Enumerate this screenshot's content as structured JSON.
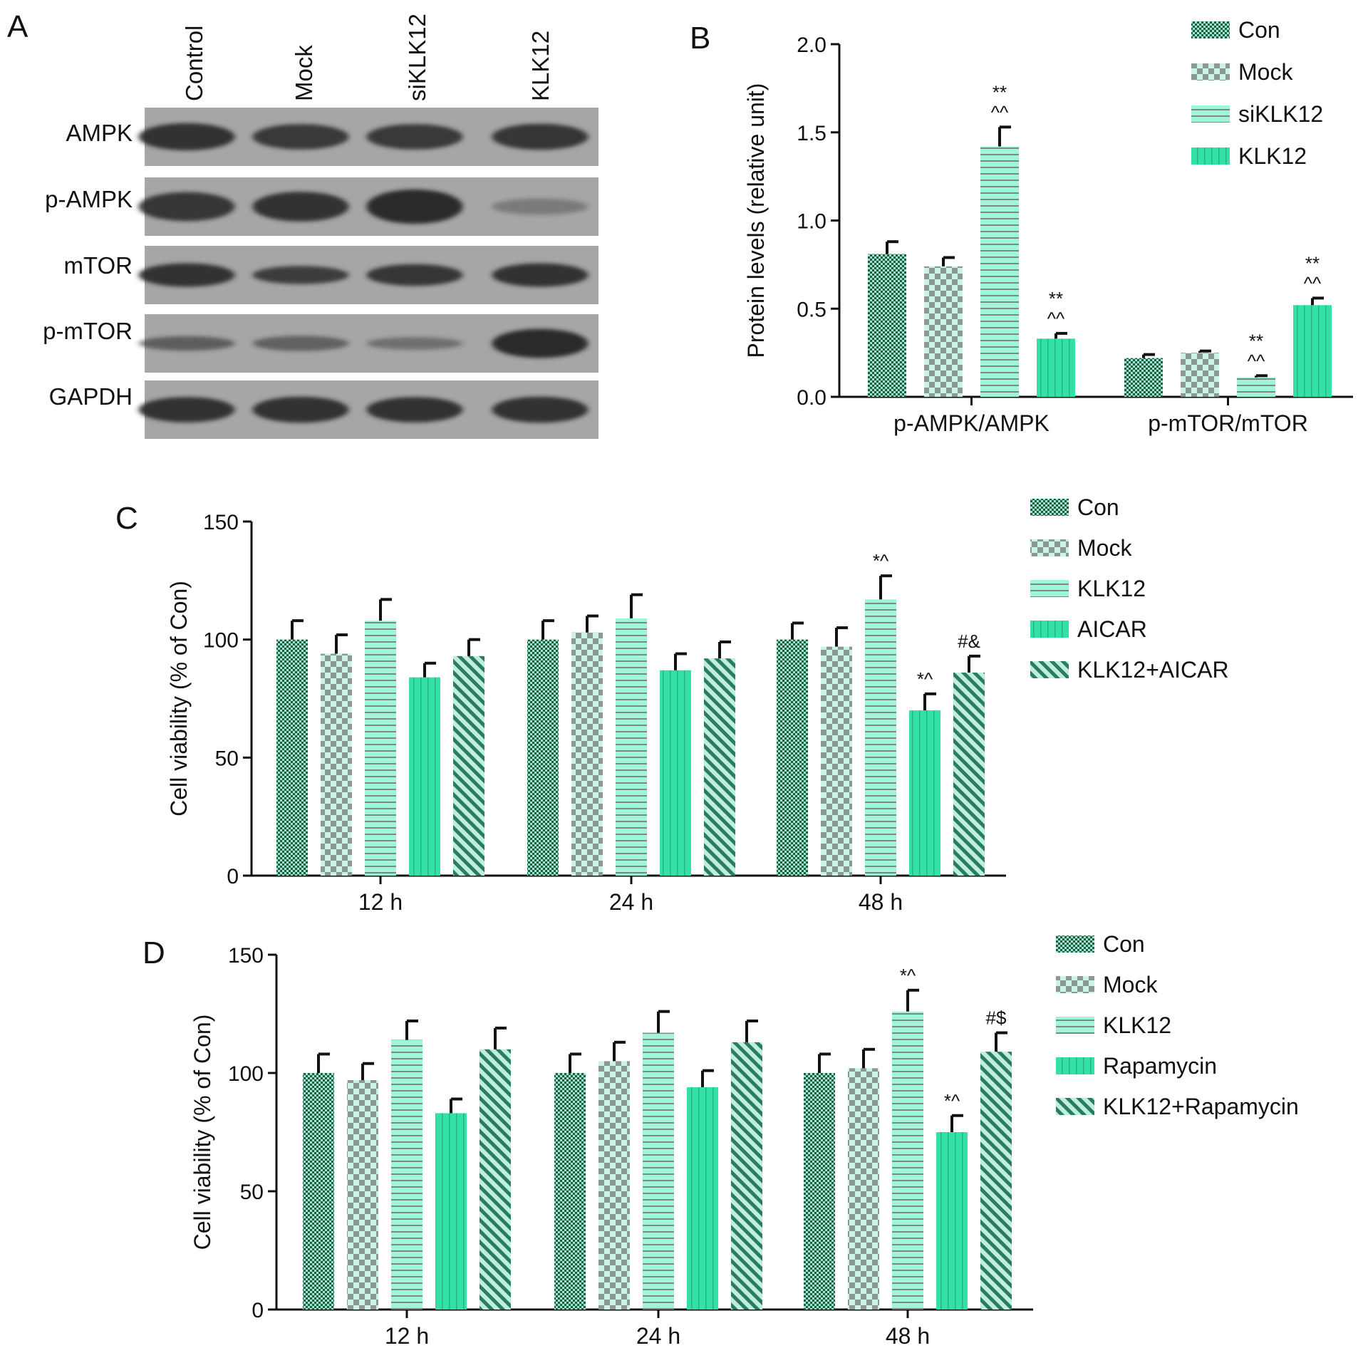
{
  "colors": {
    "con_dark": "#1d5c45",
    "con_light": "#9fe6c9",
    "mock_dark": "#8a9a92",
    "mock_light": "#c9f4e3",
    "klk_stripe": "#7a8a82",
    "klk_fill": "#9ef5d8",
    "solid_fill": "#33e0a8",
    "solid_line": "#21b784",
    "hatch_line": "#2a7c60",
    "hatch_bg": "#bfefdc",
    "blot_bg": "#a6a6a6",
    "band": "#2b2b2b",
    "axis": "#111111"
  },
  "panels": {
    "a": {
      "letter": "A"
    },
    "b": {
      "letter": "B"
    },
    "c": {
      "letter": "C"
    },
    "d": {
      "letter": "D"
    }
  },
  "blot": {
    "lanes": [
      "Control",
      "Mock",
      "siKLK12",
      "KLK12"
    ],
    "rows": [
      {
        "label": "AMPK",
        "intensity": [
          0.95,
          0.9,
          0.9,
          0.92
        ],
        "thickness": [
          0.75,
          0.7,
          0.7,
          0.72
        ]
      },
      {
        "label": "p-AMPK",
        "intensity": [
          0.92,
          0.95,
          1.0,
          0.35
        ],
        "thickness": [
          0.8,
          0.82,
          0.95,
          0.45
        ]
      },
      {
        "label": "mTOR",
        "intensity": [
          0.95,
          0.85,
          0.92,
          0.95
        ],
        "thickness": [
          0.65,
          0.5,
          0.6,
          0.65
        ]
      },
      {
        "label": "p-mTOR",
        "intensity": [
          0.6,
          0.55,
          0.45,
          1.0
        ],
        "thickness": [
          0.4,
          0.42,
          0.35,
          0.8
        ]
      },
      {
        "label": "GAPDH",
        "intensity": [
          0.95,
          0.95,
          0.95,
          0.95
        ],
        "thickness": [
          0.7,
          0.72,
          0.7,
          0.72
        ]
      }
    ]
  },
  "chart_data": [
    {
      "panel": "B",
      "type": "bar",
      "ylabel": "Protein levels (relative unit)",
      "xlabel": "",
      "ylim": [
        0,
        2.0
      ],
      "yticks": [
        "0.0",
        "0.5",
        "1.0",
        "1.5",
        "2.0"
      ],
      "categories": [
        "p-AMPK/AMPK",
        "p-mTOR/mTOR"
      ],
      "series": [
        {
          "name": "Con",
          "pattern": "con",
          "values": [
            0.81,
            0.22
          ],
          "errors": [
            0.07,
            0.02
          ],
          "annotations": [
            "",
            ""
          ]
        },
        {
          "name": "Mock",
          "pattern": "mock",
          "values": [
            0.74,
            0.25
          ],
          "errors": [
            0.05,
            0.01
          ],
          "annotations": [
            "",
            ""
          ]
        },
        {
          "name": "siKLK12",
          "pattern": "klk",
          "values": [
            1.42,
            0.11
          ],
          "errors": [
            0.11,
            0.01
          ],
          "annotations": [
            "**\n^^",
            "**\n^^"
          ]
        },
        {
          "name": "KLK12",
          "pattern": "solid",
          "values": [
            0.33,
            0.52
          ],
          "errors": [
            0.03,
            0.04
          ],
          "annotations": [
            "**\n^^",
            "**\n^^"
          ]
        }
      ],
      "legend": "top-right",
      "grid": false
    },
    {
      "panel": "C",
      "type": "bar",
      "ylabel": "Cell viability (% of Con)",
      "xlabel": "",
      "ylim": [
        0,
        150
      ],
      "yticks": [
        "0",
        "50",
        "100",
        "150"
      ],
      "categories": [
        "12 h",
        "24 h",
        "48 h"
      ],
      "series": [
        {
          "name": "Con",
          "pattern": "con",
          "values": [
            100,
            100,
            100
          ],
          "errors": [
            8,
            8,
            7
          ],
          "annotations": [
            "",
            "",
            ""
          ]
        },
        {
          "name": "Mock",
          "pattern": "mock",
          "values": [
            94,
            103,
            97
          ],
          "errors": [
            8,
            7,
            8
          ],
          "annotations": [
            "",
            "",
            ""
          ]
        },
        {
          "name": "KLK12",
          "pattern": "klk",
          "values": [
            108,
            109,
            117
          ],
          "errors": [
            9,
            10,
            10
          ],
          "annotations": [
            "",
            "",
            "*^"
          ]
        },
        {
          "name": "AICAR",
          "pattern": "solid",
          "values": [
            84,
            87,
            70
          ],
          "errors": [
            6,
            7,
            7
          ],
          "annotations": [
            "",
            "",
            "*^"
          ]
        },
        {
          "name": "KLK12+AICAR",
          "pattern": "hatch",
          "values": [
            93,
            92,
            86
          ],
          "errors": [
            7,
            7,
            7
          ],
          "annotations": [
            "",
            "",
            "#&"
          ]
        }
      ],
      "legend": "top-right",
      "grid": false
    },
    {
      "panel": "D",
      "type": "bar",
      "ylabel": "Cell viability (% of Con)",
      "xlabel": "",
      "ylim": [
        0,
        150
      ],
      "yticks": [
        "0",
        "50",
        "100",
        "150"
      ],
      "categories": [
        "12 h",
        "24 h",
        "48 h"
      ],
      "series": [
        {
          "name": "Con",
          "pattern": "con",
          "values": [
            100,
            100,
            100
          ],
          "errors": [
            8,
            8,
            8
          ],
          "annotations": [
            "",
            "",
            ""
          ]
        },
        {
          "name": "Mock",
          "pattern": "mock",
          "values": [
            97,
            105,
            102
          ],
          "errors": [
            7,
            8,
            8
          ],
          "annotations": [
            "",
            "",
            ""
          ]
        },
        {
          "name": "KLK12",
          "pattern": "klk",
          "values": [
            114,
            117,
            126
          ],
          "errors": [
            8,
            9,
            9
          ],
          "annotations": [
            "",
            "",
            "*^"
          ]
        },
        {
          "name": "Rapamycin",
          "pattern": "solid",
          "values": [
            83,
            94,
            75
          ],
          "errors": [
            6,
            7,
            7
          ],
          "annotations": [
            "",
            "",
            "*^"
          ]
        },
        {
          "name": "KLK12+Rapamycin",
          "pattern": "hatch",
          "values": [
            110,
            113,
            109
          ],
          "errors": [
            9,
            9,
            8
          ],
          "annotations": [
            "",
            "",
            "#$"
          ]
        }
      ],
      "legend": "top-right",
      "grid": false
    }
  ]
}
